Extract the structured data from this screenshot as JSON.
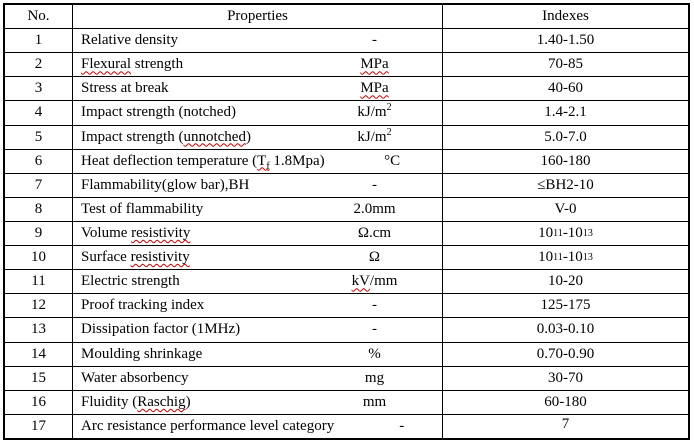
{
  "table": {
    "headers": {
      "no": "No.",
      "properties": "Properties",
      "indexes": "Indexes"
    },
    "rows": [
      {
        "no": "1",
        "property": "Relative density",
        "unit": "-",
        "index": "1.40-1.50"
      },
      {
        "no": "2",
        "property": "Flexural strength",
        "property_misspelled": [
          "Flexural"
        ],
        "unit": "MPa",
        "unit_misspelled": [
          "MPa"
        ],
        "index": "70-85"
      },
      {
        "no": "3",
        "property": "Stress at break",
        "unit": "MPa",
        "unit_misspelled": [
          "MPa"
        ],
        "index": "40-60"
      },
      {
        "no": "4",
        "property": "Impact strength (notched)",
        "unit": "kJ/m^{2}",
        "index": "1.4-2.1"
      },
      {
        "no": "5",
        "property": "Impact strength (unnotched)",
        "property_misspelled": [
          "unnotched"
        ],
        "unit": "kJ/m^{2}",
        "index": "5.0-7.0"
      },
      {
        "no": "6",
        "property": "Heat deflection temperature (T_{f} 1.8Mpa)",
        "property_misspelled": [
          "T_{f}"
        ],
        "unit": "°C",
        "index": "160-180"
      },
      {
        "no": "7",
        "property": "Flammability(glow bar),BH",
        "unit": "-",
        "index": "≤BH2-10"
      },
      {
        "no": "8",
        "property": "Test of flammability",
        "unit": "2.0mm",
        "index": "V-0"
      },
      {
        "no": "9",
        "property": "Volume resistivity",
        "property_misspelled": [
          "resistivity"
        ],
        "unit": "Ω.cm",
        "index": "10^{11}-10^{13}"
      },
      {
        "no": "10",
        "property": "Surface resistivity",
        "property_misspelled": [
          "resistivity"
        ],
        "unit": "Ω",
        "index": "10^{11}-10^{13}"
      },
      {
        "no": "11",
        "property": "Electric strength",
        "unit": "kV/mm",
        "unit_misspelled": [
          "kV"
        ],
        "index": "10-20"
      },
      {
        "no": "12",
        "property": "Proof tracking index",
        "unit": "-",
        "index": "125-175"
      },
      {
        "no": "13",
        "property": "Dissipation factor (1MHz)",
        "unit": "-",
        "index": "0.03-0.10"
      },
      {
        "no": "14",
        "property": "Moulding shrinkage",
        "unit": "%",
        "index": "0.70-0.90"
      },
      {
        "no": "15",
        "property": "Water absorbency",
        "unit": "mg",
        "index": "30-70"
      },
      {
        "no": "16",
        "property": "Fluidity (Raschig)",
        "property_misspelled": [
          "Raschig"
        ],
        "unit": "mm",
        "index": "60-180"
      },
      {
        "no": "17",
        "property": "Arc resistance performance level category",
        "unit": "-",
        "index": "7",
        "index_valign": "top"
      }
    ]
  },
  "colors": {
    "border": "#000000",
    "text": "#000000",
    "background": "#ffffff",
    "spellcheck_underline": "#c00000"
  }
}
